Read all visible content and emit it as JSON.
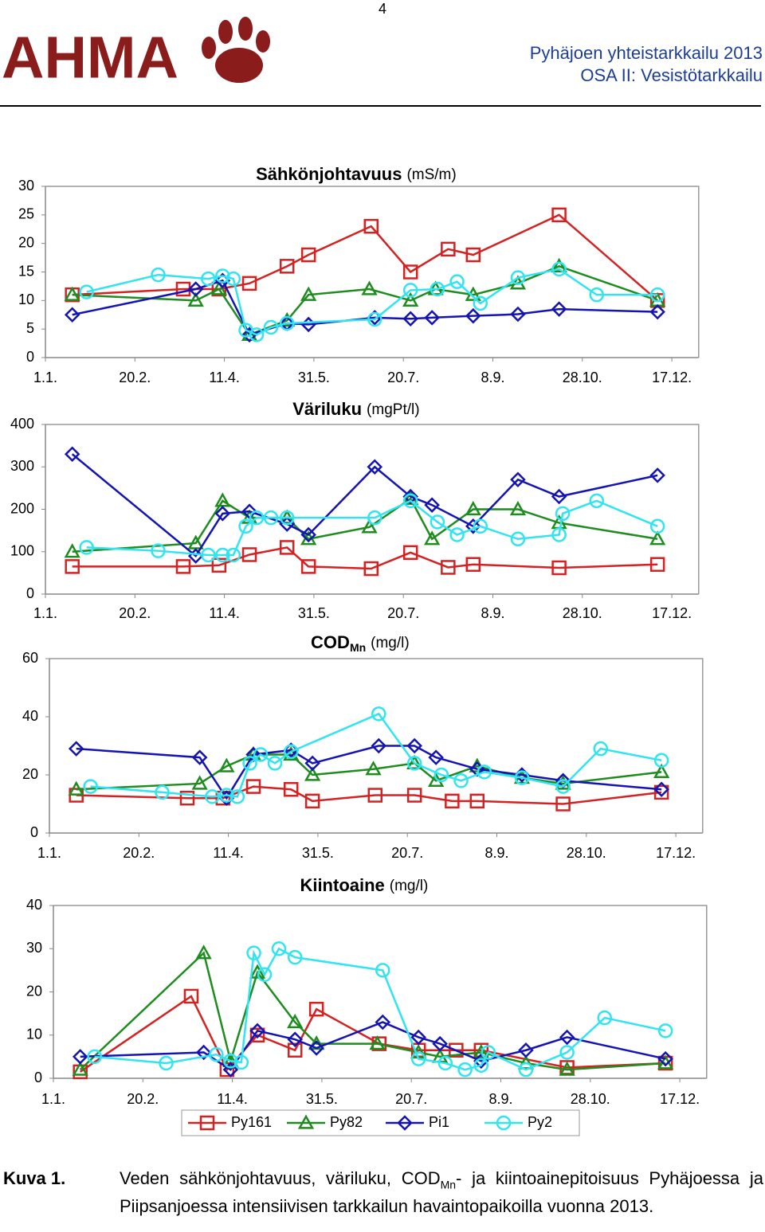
{
  "header": {
    "page_number": "4",
    "logo": "AHMA",
    "title": "Pyhäjoen yhteistarkkailu 2013",
    "subtitle": "OSA II: Vesistötarkkailu"
  },
  "chart_data": [
    {
      "type": "line",
      "title": "Sähkönjohtavuus",
      "unit": "(mS/m)",
      "xlim": [
        1,
        366
      ],
      "ylim": [
        0,
        30
      ],
      "yticks": [
        0,
        5,
        10,
        15,
        20,
        25,
        30
      ],
      "xticks": [
        {
          "value": 1,
          "label": "1.1."
        },
        {
          "value": 51,
          "label": "20.2."
        },
        {
          "value": 101,
          "label": "11.4."
        },
        {
          "value": 151,
          "label": "31.5."
        },
        {
          "value": 201,
          "label": "20.7."
        },
        {
          "value": 251,
          "label": "8.9."
        },
        {
          "value": 301,
          "label": "28.10."
        },
        {
          "value": 351,
          "label": "17.12."
        }
      ],
      "grid": false,
      "series": [
        {
          "color": "#d42222",
          "marker": "square",
          "x": [
            16,
            78,
            98,
            115,
            136,
            148,
            183,
            205,
            226,
            240,
            288,
            343
          ],
          "values": [
            11,
            12,
            12,
            13,
            16,
            18,
            23,
            15,
            19,
            18,
            25,
            10
          ]
        },
        {
          "color": "#1e8c1e",
          "marker": "triangle",
          "x": [
            16,
            85,
            98,
            115,
            136,
            148,
            182,
            205,
            219,
            240,
            265,
            288,
            343
          ],
          "values": [
            11,
            10,
            12,
            4,
            6.5,
            11,
            12,
            10,
            12,
            11,
            13,
            16,
            10
          ]
        },
        {
          "color": "#1414b4",
          "marker": "diamond",
          "x": [
            16,
            85,
            100,
            115,
            136,
            148,
            185,
            205,
            217,
            240,
            265,
            288,
            343
          ],
          "values": [
            7.5,
            12,
            13.5,
            4,
            6,
            5.8,
            7,
            6.8,
            7,
            7.3,
            7.6,
            8.5,
            8
          ]
        },
        {
          "color": "#30e4f0",
          "marker": "circle",
          "x": [
            24,
            64,
            92,
            100,
            106,
            113,
            119,
            127,
            136,
            185,
            205,
            220,
            231,
            244,
            265,
            288,
            309,
            343
          ],
          "values": [
            11.5,
            14.5,
            13.8,
            14.3,
            13.8,
            4.8,
            4,
            5.3,
            6,
            6.7,
            11.8,
            12,
            13.3,
            9.5,
            14,
            15.5,
            11,
            11
          ]
        }
      ]
    },
    {
      "type": "line",
      "title": "Väriluku",
      "unit": "(mgPt/l)",
      "xlim": [
        1,
        366
      ],
      "ylim": [
        0,
        400
      ],
      "yticks": [
        0,
        100,
        200,
        300,
        400
      ],
      "xticks": [
        {
          "value": 1,
          "label": "1.1."
        },
        {
          "value": 51,
          "label": "20.2."
        },
        {
          "value": 101,
          "label": "11.4."
        },
        {
          "value": 151,
          "label": "31.5."
        },
        {
          "value": 201,
          "label": "20.7."
        },
        {
          "value": 251,
          "label": "8.9."
        },
        {
          "value": 301,
          "label": "28.10."
        },
        {
          "value": 351,
          "label": "17.12."
        }
      ],
      "grid": false,
      "series": [
        {
          "color": "#d42222",
          "marker": "square",
          "x": [
            16,
            78,
            98,
            115,
            136,
            148,
            183,
            205,
            226,
            240,
            288,
            343
          ],
          "values": [
            65,
            65,
            68,
            93,
            110,
            65,
            60,
            98,
            63,
            70,
            62,
            70
          ]
        },
        {
          "color": "#1e8c1e",
          "marker": "triangle",
          "x": [
            16,
            85,
            100,
            115,
            136,
            148,
            182,
            205,
            217,
            240,
            265,
            288,
            343
          ],
          "values": [
            100,
            120,
            220,
            180,
            180,
            130,
            158,
            225,
            130,
            200,
            200,
            168,
            130
          ]
        },
        {
          "color": "#1414b4",
          "marker": "diamond",
          "x": [
            16,
            85,
            100,
            115,
            136,
            148,
            185,
            205,
            217,
            240,
            265,
            288,
            343
          ],
          "values": [
            330,
            90,
            190,
            195,
            165,
            140,
            300,
            230,
            210,
            160,
            270,
            230,
            280
          ]
        },
        {
          "color": "#30e4f0",
          "marker": "circle",
          "x": [
            24,
            64,
            92,
            100,
            106,
            113,
            119,
            127,
            136,
            185,
            205,
            220,
            231,
            244,
            265,
            288,
            290,
            309,
            343
          ],
          "values": [
            110,
            102,
            92,
            92,
            92,
            160,
            180,
            180,
            180,
            180,
            220,
            170,
            140,
            160,
            130,
            140,
            190,
            220,
            160
          ]
        }
      ]
    },
    {
      "type": "line",
      "title": "COD",
      "title_sub": "Mn",
      "unit": "(mg/l)",
      "xlim": [
        1,
        366
      ],
      "ylim": [
        0,
        60
      ],
      "yticks": [
        0,
        20,
        40,
        60
      ],
      "xticks": [
        {
          "value": 1,
          "label": "1.1."
        },
        {
          "value": 51,
          "label": "20.2."
        },
        {
          "value": 101,
          "label": "11.4."
        },
        {
          "value": 151,
          "label": "31.5."
        },
        {
          "value": 201,
          "label": "20.7."
        },
        {
          "value": 251,
          "label": "8.9."
        },
        {
          "value": 301,
          "label": "28.10."
        },
        {
          "value": 351,
          "label": "17.12."
        }
      ],
      "grid": false,
      "series": [
        {
          "color": "#d42222",
          "marker": "square",
          "x": [
            16,
            78,
            98,
            115,
            136,
            148,
            183,
            205,
            226,
            240,
            288,
            343
          ],
          "values": [
            13,
            12,
            12,
            16,
            15,
            11,
            13,
            13,
            11,
            11,
            10,
            14
          ]
        },
        {
          "color": "#1e8c1e",
          "marker": "triangle",
          "x": [
            16,
            85,
            100,
            115,
            136,
            148,
            182,
            205,
            217,
            240,
            265,
            288,
            343
          ],
          "values": [
            15,
            17,
            23,
            27,
            27,
            20,
            22,
            24,
            18,
            23,
            19,
            17,
            21
          ]
        },
        {
          "color": "#1414b4",
          "marker": "diamond",
          "x": [
            16,
            85,
            100,
            115,
            136,
            148,
            185,
            205,
            217,
            240,
            265,
            288,
            343
          ],
          "values": [
            29,
            26,
            12,
            27,
            28.5,
            24,
            30,
            30,
            26,
            22,
            20,
            18,
            15
          ]
        },
        {
          "color": "#30e4f0",
          "marker": "circle",
          "x": [
            24,
            64,
            92,
            100,
            106,
            113,
            119,
            127,
            136,
            185,
            205,
            220,
            231,
            244,
            265,
            288,
            309,
            343
          ],
          "values": [
            16,
            14,
            12.5,
            13,
            12.5,
            24,
            27,
            24,
            28,
            41,
            24,
            20,
            18,
            21,
            19,
            16,
            29,
            25
          ]
        }
      ]
    },
    {
      "type": "line",
      "title": "Kiintoaine",
      "unit": "(mg/l)",
      "xlim": [
        1,
        366
      ],
      "ylim": [
        0,
        40
      ],
      "yticks": [
        0,
        10,
        20,
        30,
        40
      ],
      "xticks": [
        {
          "value": 1,
          "label": "1.1."
        },
        {
          "value": 51,
          "label": "20.2."
        },
        {
          "value": 101,
          "label": "11.4."
        },
        {
          "value": 151,
          "label": "31.5."
        },
        {
          "value": 201,
          "label": "20.7."
        },
        {
          "value": 251,
          "label": "8.9."
        },
        {
          "value": 301,
          "label": "28.10."
        },
        {
          "value": 351,
          "label": "17.12."
        }
      ],
      "grid": false,
      "legend": "bottom",
      "series": [
        {
          "name": "Py161",
          "color": "#d42222",
          "marker": "square",
          "x": [
            16,
            78,
            98,
            115,
            136,
            148,
            183,
            205,
            226,
            240,
            288,
            343
          ],
          "values": [
            1.5,
            19,
            2,
            10,
            6.5,
            16,
            8,
            6.5,
            6.5,
            6.5,
            2.5,
            3.5
          ]
        },
        {
          "name": "Py82",
          "color": "#1e8c1e",
          "marker": "triangle",
          "x": [
            16,
            85,
            100,
            115,
            136,
            148,
            182,
            205,
            217,
            240,
            265,
            288,
            343
          ],
          "values": [
            2,
            29,
            4,
            24.5,
            13,
            8,
            8,
            6,
            5,
            6,
            3.5,
            2,
            3.5
          ]
        },
        {
          "name": "Pi1",
          "color": "#1414b4",
          "marker": "diamond",
          "x": [
            16,
            85,
            100,
            115,
            136,
            148,
            185,
            205,
            217,
            240,
            265,
            288,
            343
          ],
          "values": [
            5,
            6,
            2,
            11,
            9,
            7,
            13,
            9.5,
            8,
            4,
            6.5,
            9.5,
            4.5
          ]
        },
        {
          "name": "Py2",
          "color": "#30e4f0",
          "marker": "circle",
          "x": [
            24,
            64,
            92,
            100,
            106,
            113,
            119,
            127,
            136,
            185,
            205,
            220,
            231,
            240,
            244,
            265,
            288,
            309,
            343
          ],
          "values": [
            5,
            3.5,
            5.5,
            4,
            3.7,
            29,
            24,
            30,
            28,
            25,
            4.5,
            3.5,
            2,
            3,
            6,
            2,
            6,
            14,
            11
          ]
        }
      ]
    }
  ],
  "caption": {
    "label": "Kuva 1.",
    "text_before": "Veden sähkönjohtavuus, väriluku, COD",
    "text_sub": "Mn",
    "text_after": "- ja kiintoainepitoisuus Pyhäjoessa ja Piipsanjoessa intensiivisen tarkkailun havaintopaikoilla vuonna 2013."
  }
}
